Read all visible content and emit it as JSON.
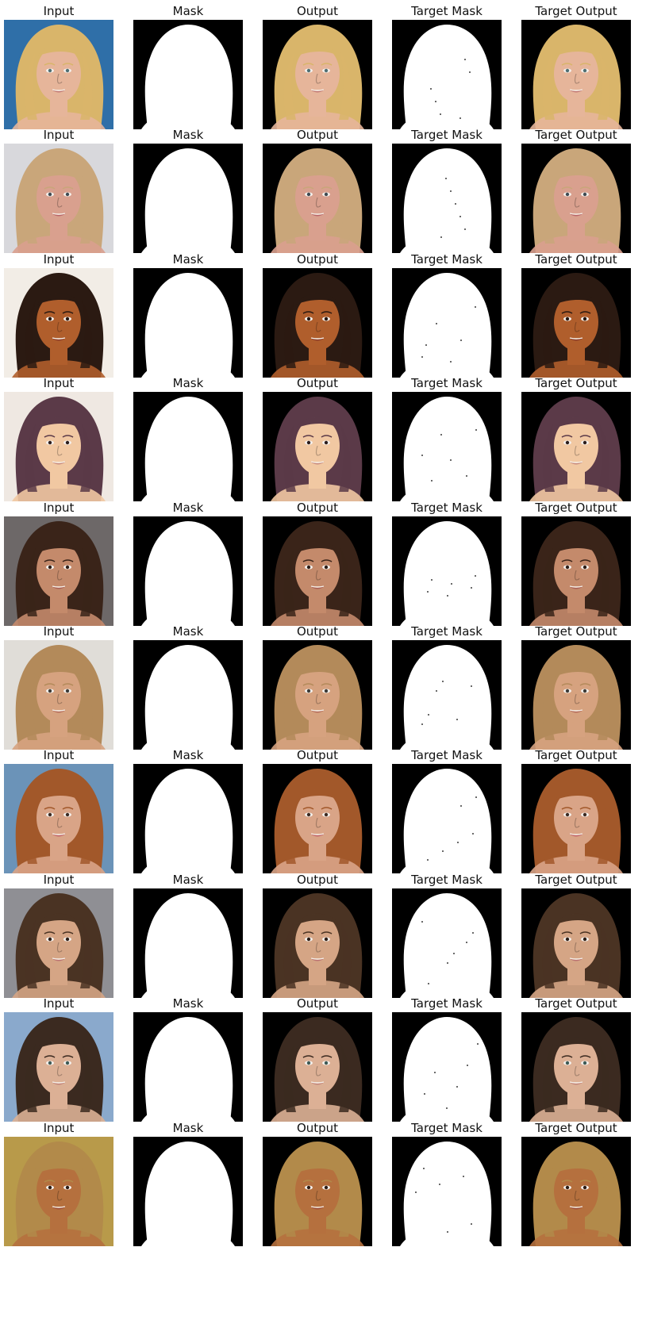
{
  "column_titles": [
    "Input",
    "Mask",
    "Output",
    "Target Mask",
    "Target Output"
  ],
  "column_kinds": [
    "input",
    "mask",
    "output",
    "target-mask",
    "target-output"
  ],
  "rows": [
    {
      "background": "#2f6fa8",
      "skin": "#e6b59a",
      "hair": "#d9b56a",
      "eyes": "#4f6f73",
      "lips": "#c27a76"
    },
    {
      "background": "#d8d8dc",
      "skin": "#d9a08e",
      "hair": "#c9a67a",
      "eyes": "#3e4a52",
      "lips": "#b86669"
    },
    {
      "background": "#f2ede6",
      "skin": "#b05e2c",
      "hair": "#2b1a12",
      "eyes": "#241510",
      "lips": "#8a3b2c"
    },
    {
      "background": "#efe8e2",
      "skin": "#f1c8a2",
      "hair": "#5b3a48",
      "eyes": "#2b1c1c",
      "lips": "#c78a7e"
    },
    {
      "background": "#6d6868",
      "skin": "#c48a6b",
      "hair": "#3a2419",
      "eyes": "#2a1b15",
      "lips": "#a85e55"
    },
    {
      "background": "#e0ddd8",
      "skin": "#d6a27f",
      "hair": "#b38a5a",
      "eyes": "#3c3a36",
      "lips": "#b46a5a"
    },
    {
      "background": "#6b93b8",
      "skin": "#d9a487",
      "hair": "#a2582a",
      "eyes": "#3b2a22",
      "lips": "#c0626a"
    },
    {
      "background": "#8f8f94",
      "skin": "#d5a585",
      "hair": "#4a3323",
      "eyes": "#2a1c15",
      "lips": "#bb7272"
    },
    {
      "background": "#8aa9cc",
      "skin": "#dcb095",
      "hair": "#3b2a20",
      "eyes": "#3d5a55",
      "lips": "#c18379"
    },
    {
      "background": "#b89a4a",
      "skin": "#b5703e",
      "hair": "#b28a4a",
      "eyes": "#2b1a12",
      "lips": "#9a4a3a"
    }
  ],
  "mask_colors": {
    "foreground": "#ffffff",
    "background": "#000000"
  }
}
